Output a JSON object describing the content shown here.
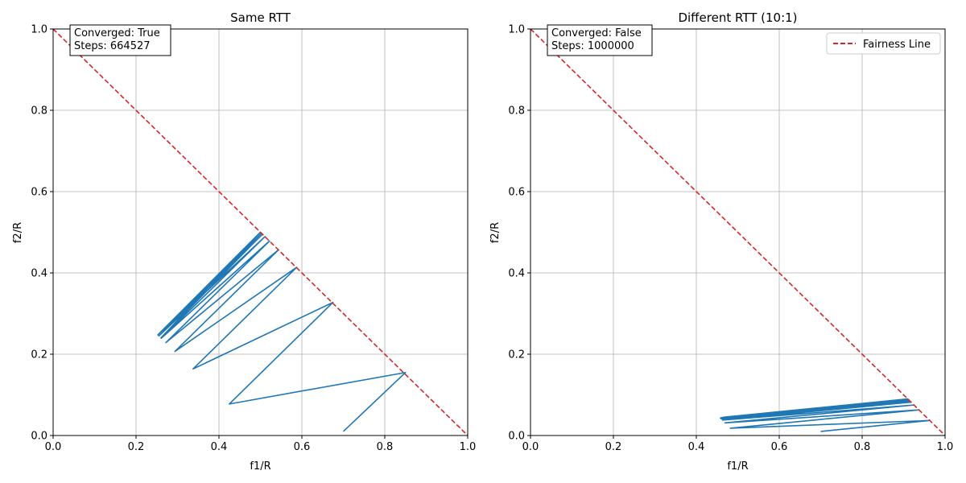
{
  "chart_data": [
    {
      "type": "line",
      "title": "Same RTT",
      "xlabel": "f1/R",
      "ylabel": "f2/R",
      "xlim": [
        0,
        1
      ],
      "ylim": [
        0,
        1
      ],
      "xticks": [
        "0.0",
        "0.2",
        "0.4",
        "0.6",
        "0.8",
        "1.0"
      ],
      "yticks": [
        "0.0",
        "0.2",
        "0.4",
        "0.6",
        "0.8",
        "1.0"
      ],
      "grid": true,
      "annotation": {
        "line1": "Converged: True",
        "line2": "Steps: 664527"
      },
      "series": [
        {
          "color": "#1f77b4",
          "x": [
            0.7,
            0.85,
            0.425,
            0.675,
            0.3375,
            0.5875,
            0.29375,
            0.54375,
            0.271875,
            0.521875,
            0.2609375,
            0.5109375,
            0.255,
            0.505,
            0.2525,
            0.5025,
            0.255,
            0.5,
            0.26,
            0.49,
            0.26,
            0.48
          ],
          "y": [
            0.01,
            0.155,
            0.0775,
            0.3275,
            0.16375,
            0.41375,
            0.206875,
            0.456875,
            0.2284375,
            0.4784375,
            0.23921875,
            0.48921875,
            0.245,
            0.495,
            0.2475,
            0.4975,
            0.25,
            0.5,
            0.25,
            0.49,
            0.24,
            0.47
          ]
        },
        {
          "color": "#d62728",
          "style": "dashed",
          "x": [
            0,
            1
          ],
          "y": [
            1,
            0
          ]
        }
      ]
    },
    {
      "type": "line",
      "title": "Different RTT (10:1)",
      "xlabel": "f1/R",
      "ylabel": "f2/R",
      "xlim": [
        0,
        1
      ],
      "ylim": [
        0,
        1
      ],
      "xticks": [
        "0.0",
        "0.2",
        "0.4",
        "0.6",
        "0.8",
        "1.0"
      ],
      "yticks": [
        "0.0",
        "0.2",
        "0.4",
        "0.6",
        "0.8",
        "1.0"
      ],
      "grid": true,
      "annotation": {
        "line1": "Converged: False",
        "line2": "Steps: 1000000"
      },
      "legend": {
        "position": "top-right",
        "entries": [
          "Fairness Line"
        ]
      },
      "series": [
        {
          "color": "#1f77b4",
          "x": [
            0.7,
            0.963,
            0.482,
            0.937,
            0.469,
            0.925,
            0.463,
            0.918,
            0.46,
            0.915,
            0.458,
            0.912,
            0.46,
            0.91,
            0.465,
            0.905,
            0.47,
            0.9
          ],
          "y": [
            0.01,
            0.037,
            0.018,
            0.063,
            0.031,
            0.075,
            0.038,
            0.082,
            0.041,
            0.085,
            0.043,
            0.088,
            0.044,
            0.09,
            0.045,
            0.088,
            0.042,
            0.085
          ]
        },
        {
          "name": "Fairness Line",
          "color": "#d62728",
          "style": "dashed",
          "x": [
            0,
            1
          ],
          "y": [
            1,
            0
          ]
        }
      ]
    }
  ]
}
